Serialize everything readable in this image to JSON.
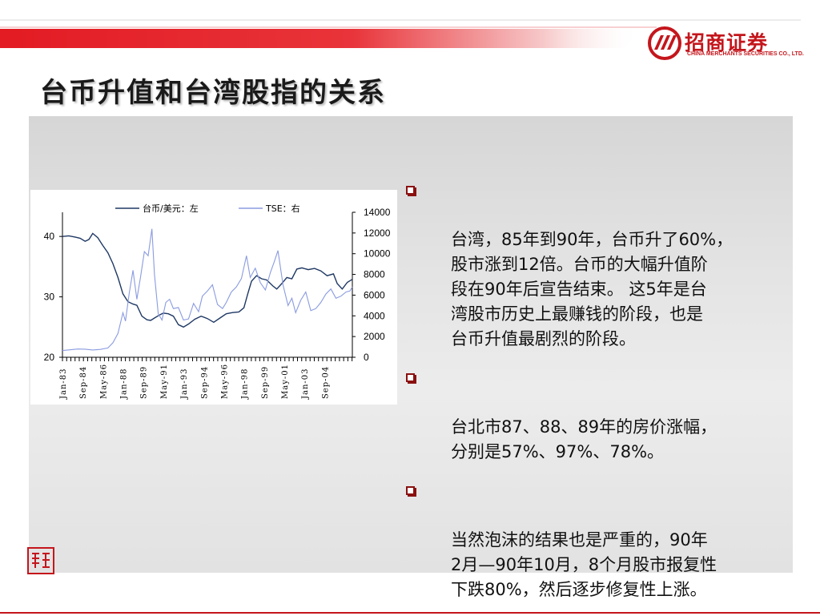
{
  "title": "台币升值和台湾股指的关系",
  "logo": {
    "cn": "招商证券",
    "en": "CHINA MERCHANTS SECURITIES CO., LTD."
  },
  "seal_text": "致行",
  "bullets": [
    {
      "text": "台湾，85年到90年，台币升了60%，\n股市涨到12倍。台币的大幅升值阶\n段在90年后宣告结束。 这5年是台\n湾股市历史上最赚钱的阶段，也是\n台币升值最剧烈的阶段。"
    },
    {
      "text": "台北市87、88、89年的房价涨幅，\n分别是57%、97%、78%。"
    },
    {
      "text": "当然泡沫的结果也是严重的，90年\n2月—90年10月，8个月股市报复性\n下跌80%，然后逐步修复性上涨。"
    }
  ],
  "colors": {
    "brand_red": "#c4161c",
    "series_left": "#1f3864",
    "series_right": "#8a9be0"
  },
  "chart_data": {
    "type": "line",
    "title": "",
    "x_categories": [
      "Jan-83",
      "Sep-84",
      "May-86",
      "Jan-88",
      "Sep-89",
      "May-91",
      "Jan-93",
      "Sep-94",
      "May-96",
      "Jan-98",
      "Sep-99",
      "May-01",
      "Jan-03",
      "Sep-04"
    ],
    "x_range": [
      1983.0,
      2006.0
    ],
    "y_left": {
      "ticks": [
        "20",
        "30",
        "40"
      ],
      "range": [
        20,
        44
      ]
    },
    "y_right": {
      "ticks": [
        "0",
        "2000",
        "4000",
        "6000",
        "8000",
        "10000",
        "12000",
        "14000"
      ],
      "range": [
        0,
        14000
      ]
    },
    "legend_position": "top",
    "series": [
      {
        "name": "台币/美元：左",
        "axis": "left",
        "points": [
          [
            1983.0,
            40.0
          ],
          [
            1983.5,
            40.1
          ],
          [
            1984.0,
            39.9
          ],
          [
            1984.4,
            39.7
          ],
          [
            1984.8,
            39.2
          ],
          [
            1985.1,
            39.5
          ],
          [
            1985.4,
            40.5
          ],
          [
            1985.8,
            39.8
          ],
          [
            1986.2,
            38.5
          ],
          [
            1986.6,
            37.3
          ],
          [
            1987.0,
            35.5
          ],
          [
            1987.4,
            33.2
          ],
          [
            1987.8,
            30.5
          ],
          [
            1988.2,
            29.2
          ],
          [
            1988.6,
            28.8
          ],
          [
            1988.9,
            28.6
          ],
          [
            1989.3,
            26.8
          ],
          [
            1989.7,
            26.2
          ],
          [
            1990.0,
            26.1
          ],
          [
            1990.3,
            26.5
          ],
          [
            1990.7,
            27.0
          ],
          [
            1991.0,
            27.3
          ],
          [
            1991.4,
            27.2
          ],
          [
            1991.8,
            26.8
          ],
          [
            1992.2,
            25.4
          ],
          [
            1992.6,
            25.0
          ],
          [
            1993.0,
            25.5
          ],
          [
            1993.5,
            26.3
          ],
          [
            1994.0,
            26.8
          ],
          [
            1994.5,
            26.4
          ],
          [
            1995.0,
            25.8
          ],
          [
            1995.5,
            26.5
          ],
          [
            1996.0,
            27.2
          ],
          [
            1996.5,
            27.4
          ],
          [
            1997.0,
            27.5
          ],
          [
            1997.4,
            28.2
          ],
          [
            1997.7,
            30.5
          ],
          [
            1998.0,
            32.6
          ],
          [
            1998.4,
            33.5
          ],
          [
            1998.8,
            33.0
          ],
          [
            1999.2,
            32.8
          ],
          [
            1999.7,
            31.8
          ],
          [
            2000.0,
            31.3
          ],
          [
            2000.4,
            32.2
          ],
          [
            2000.8,
            33.2
          ],
          [
            2001.2,
            33.0
          ],
          [
            2001.6,
            34.6
          ],
          [
            2002.0,
            34.8
          ],
          [
            2002.5,
            34.5
          ],
          [
            2003.0,
            34.7
          ],
          [
            2003.5,
            34.3
          ],
          [
            2004.0,
            33.5
          ],
          [
            2004.5,
            33.8
          ],
          [
            2004.8,
            32.2
          ],
          [
            2005.2,
            31.3
          ],
          [
            2005.6,
            32.4
          ],
          [
            2006.0,
            32.9
          ]
        ]
      },
      {
        "name": "TSE：右",
        "axis": "right",
        "points": [
          [
            1983.0,
            650
          ],
          [
            1983.6,
            720
          ],
          [
            1984.2,
            800
          ],
          [
            1984.8,
            780
          ],
          [
            1985.4,
            700
          ],
          [
            1986.0,
            760
          ],
          [
            1986.6,
            900
          ],
          [
            1987.0,
            1400
          ],
          [
            1987.4,
            2300
          ],
          [
            1987.8,
            4300
          ],
          [
            1988.0,
            3500
          ],
          [
            1988.3,
            6200
          ],
          [
            1988.6,
            8400
          ],
          [
            1988.9,
            5600
          ],
          [
            1989.2,
            7800
          ],
          [
            1989.5,
            10200
          ],
          [
            1989.8,
            9800
          ],
          [
            1990.1,
            12400
          ],
          [
            1990.3,
            8000
          ],
          [
            1990.6,
            4200
          ],
          [
            1990.9,
            3600
          ],
          [
            1991.2,
            5300
          ],
          [
            1991.5,
            5600
          ],
          [
            1991.8,
            4700
          ],
          [
            1992.2,
            4800
          ],
          [
            1992.6,
            3600
          ],
          [
            1993.0,
            3700
          ],
          [
            1993.4,
            5200
          ],
          [
            1993.8,
            4400
          ],
          [
            1994.1,
            5900
          ],
          [
            1994.5,
            6400
          ],
          [
            1994.9,
            7000
          ],
          [
            1995.3,
            5100
          ],
          [
            1995.7,
            4700
          ],
          [
            1996.0,
            5300
          ],
          [
            1996.4,
            6300
          ],
          [
            1996.8,
            6800
          ],
          [
            1997.2,
            7600
          ],
          [
            1997.6,
            9800
          ],
          [
            1997.9,
            7700
          ],
          [
            1998.3,
            8600
          ],
          [
            1998.7,
            7200
          ],
          [
            1999.1,
            6500
          ],
          [
            1999.5,
            8200
          ],
          [
            1999.8,
            9200
          ],
          [
            2000.1,
            10300
          ],
          [
            2000.5,
            7000
          ],
          [
            2000.9,
            5000
          ],
          [
            2001.2,
            5700
          ],
          [
            2001.5,
            4300
          ],
          [
            2001.9,
            5500
          ],
          [
            2002.3,
            6300
          ],
          [
            2002.7,
            4500
          ],
          [
            2003.1,
            4700
          ],
          [
            2003.5,
            5300
          ],
          [
            2003.9,
            6100
          ],
          [
            2004.3,
            6600
          ],
          [
            2004.7,
            5700
          ],
          [
            2005.1,
            5900
          ],
          [
            2005.5,
            6300
          ],
          [
            2005.8,
            6400
          ],
          [
            2006.0,
            6800
          ]
        ]
      }
    ]
  }
}
